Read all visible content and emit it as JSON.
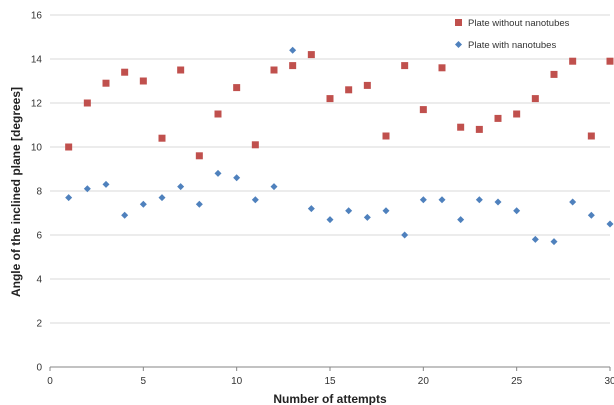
{
  "chart_data": {
    "type": "scatter",
    "title": "",
    "xlabel": "Number of attempts",
    "ylabel": "Angle of the inclined plane [degrees]",
    "xlim": [
      0,
      30
    ],
    "ylim": [
      0,
      16
    ],
    "xticks": [
      0,
      5,
      10,
      15,
      20,
      25,
      30
    ],
    "yticks": [
      0,
      2,
      4,
      6,
      8,
      10,
      12,
      14,
      16
    ],
    "grid": "horizontal",
    "legend_position": "top-right",
    "series": [
      {
        "name": "Plate without nanotubes",
        "marker": "square",
        "color": "#c0504d",
        "x": [
          1,
          2,
          3,
          4,
          5,
          6,
          7,
          8,
          9,
          10,
          11,
          12,
          13,
          14,
          15,
          16,
          17,
          18,
          19,
          20,
          21,
          22,
          23,
          24,
          25,
          26,
          27,
          28,
          29,
          30
        ],
        "y": [
          10.0,
          12.0,
          12.9,
          13.4,
          13.0,
          10.4,
          13.5,
          9.6,
          11.5,
          12.7,
          10.1,
          13.5,
          13.7,
          14.2,
          12.2,
          12.6,
          12.8,
          10.5,
          13.7,
          11.7,
          13.6,
          10.9,
          10.8,
          11.3,
          11.5,
          12.2,
          13.3,
          13.9,
          10.5,
          13.9
        ]
      },
      {
        "name": "Plate with nanotubes",
        "marker": "diamond",
        "color": "#4f81bd",
        "x": [
          1,
          2,
          3,
          4,
          5,
          6,
          7,
          8,
          9,
          10,
          11,
          12,
          13,
          14,
          15,
          16,
          17,
          18,
          19,
          20,
          21,
          22,
          23,
          24,
          25,
          26,
          27,
          28,
          29,
          30
        ],
        "y": [
          7.7,
          8.1,
          8.3,
          6.9,
          7.4,
          7.7,
          8.2,
          7.4,
          8.8,
          8.6,
          7.6,
          8.2,
          14.4,
          7.2,
          6.7,
          7.1,
          6.8,
          7.1,
          6.0,
          7.6,
          7.6,
          6.7,
          7.6,
          7.5,
          7.1,
          5.8,
          5.7,
          7.5,
          6.9,
          6.5
        ]
      }
    ]
  }
}
